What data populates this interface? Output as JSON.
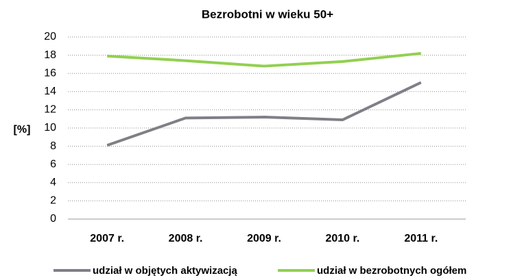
{
  "chart_data": {
    "type": "line",
    "title": "Bezrobotni w wieku 50+",
    "y_label": "[%]",
    "categories": [
      "2007 r.",
      "2008 r.",
      "2009 r.",
      "2010 r.",
      "2011 r."
    ],
    "series": [
      {
        "name": "udział w objętych aktywizacją",
        "color": "#7f7f87",
        "values": [
          8.1,
          11.1,
          11.2,
          10.9,
          15.0
        ]
      },
      {
        "name": "udział w bezrobotnych ogółem",
        "color": "#92d050",
        "values": [
          17.9,
          17.4,
          16.8,
          17.3,
          18.2
        ]
      }
    ],
    "ylim": [
      0,
      20
    ],
    "yticks": [
      0,
      2,
      4,
      6,
      8,
      10,
      12,
      14,
      16,
      18,
      20
    ],
    "grid": true,
    "legend": "bottom"
  }
}
